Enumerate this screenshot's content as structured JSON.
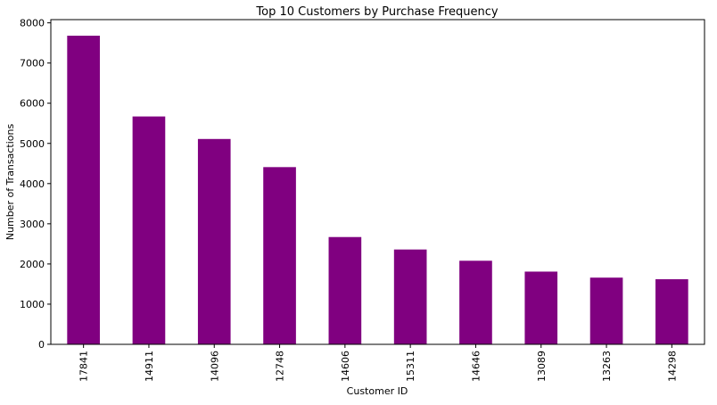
{
  "chart_data": {
    "type": "bar",
    "title": "Top 10 Customers by Purchase Frequency",
    "xlabel": "Customer ID",
    "ylabel": "Number of Transactions",
    "categories": [
      "17841",
      "14911",
      "14096",
      "12748",
      "14606",
      "15311",
      "14646",
      "13089",
      "13263",
      "14298"
    ],
    "values": [
      7680,
      5670,
      5110,
      4410,
      2670,
      2360,
      2080,
      1810,
      1660,
      1620
    ],
    "ylim": [
      0,
      8080
    ],
    "yticks": [
      0,
      1000,
      2000,
      3000,
      4000,
      5000,
      6000,
      7000,
      8000
    ],
    "bar_color": "#800080",
    "grid": false,
    "legend": "none"
  }
}
